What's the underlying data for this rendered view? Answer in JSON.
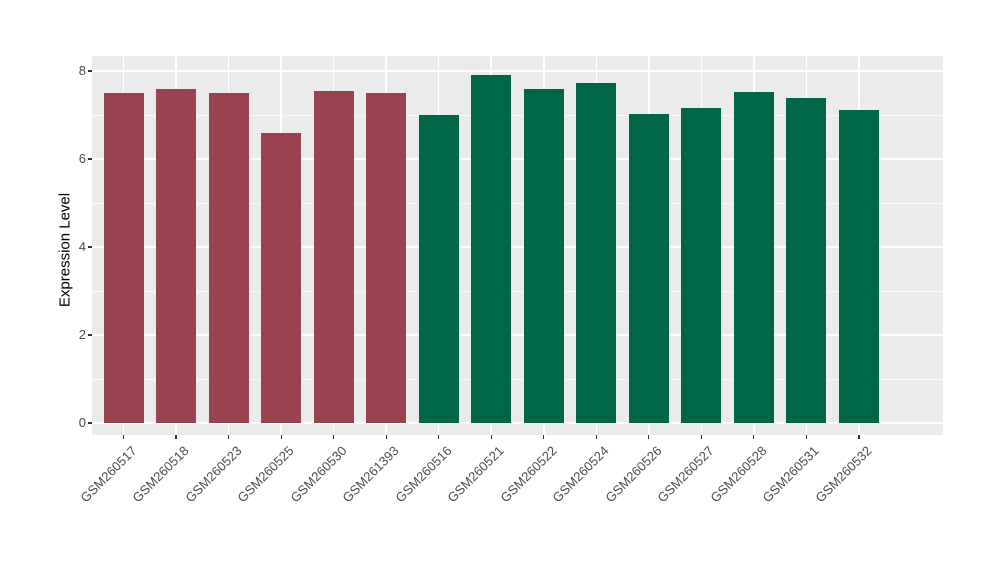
{
  "chart_data": {
    "type": "bar",
    "ylabel": "Expression Level",
    "categories": [
      "GSM260517",
      "GSM260518",
      "GSM260523",
      "GSM260525",
      "GSM260530",
      "GSM261393",
      "GSM260516",
      "GSM260521",
      "GSM260522",
      "GSM260524",
      "GSM260526",
      "GSM260527",
      "GSM260528",
      "GSM260531",
      "GSM260532"
    ],
    "values": [
      7.5,
      7.58,
      7.5,
      6.6,
      7.54,
      7.5,
      7.0,
      7.92,
      7.58,
      7.72,
      7.02,
      7.15,
      7.52,
      7.38,
      7.12
    ],
    "groups": [
      "group1",
      "group1",
      "group1",
      "group1",
      "group1",
      "group1",
      "group2",
      "group2",
      "group2",
      "group2",
      "group2",
      "group2",
      "group2",
      "group2",
      "group2"
    ],
    "group_colors": {
      "group1": "#9A4350",
      "group2": "#006648"
    },
    "yticks": [
      0,
      2,
      4,
      6,
      8
    ],
    "yticks_minor": [
      1,
      3,
      5,
      7
    ],
    "ylim": [
      0,
      8
    ],
    "grid": true,
    "legend_position": "none",
    "panel_background": "#EBEBEB",
    "gridline_color": "#FFFFFF",
    "axis_text_color": "#4D4D4D",
    "axis_title_color": "#000000",
    "tick_mark_color": "#333333"
  }
}
